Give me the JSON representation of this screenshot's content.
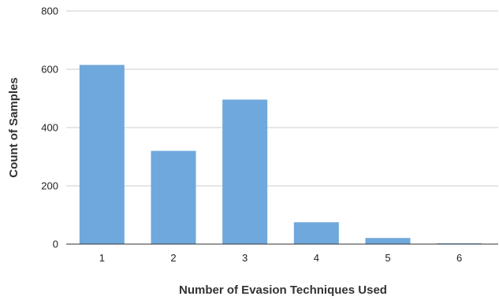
{
  "chart_data": {
    "type": "bar",
    "title": "",
    "xlabel": "Number of Evasion Techniques Used",
    "ylabel": "Count of Samples",
    "categories": [
      "1",
      "2",
      "3",
      "4",
      "5",
      "6"
    ],
    "series": [
      {
        "values": [
          615,
          320,
          496,
          75,
          21,
          2
        ]
      }
    ],
    "ylim": [
      0,
      800
    ],
    "yticks": [
      0,
      200,
      400,
      600,
      800
    ],
    "ytick_labels": [
      "0",
      "200",
      "400",
      "600",
      "800"
    ],
    "grid": true,
    "legend": "none",
    "colors": {
      "bar": "#6fa8dc",
      "grid": "#cccccc",
      "axis": "#333333"
    }
  }
}
